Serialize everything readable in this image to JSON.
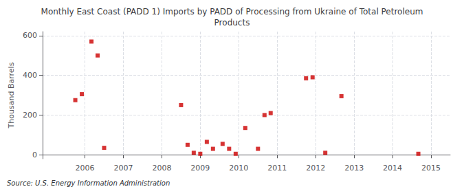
{
  "chart_data": {
    "type": "scatter",
    "title": "Monthly East Coast (PADD 1) Imports by PADD of Processing from Ukraine of Total Petroleum\nProducts",
    "ylabel": "Thousand Barrels",
    "source": "Source: U.S. Energy Information Administration",
    "x": [
      2005.75,
      2005.92,
      2006.17,
      2006.33,
      2006.5,
      2008.5,
      2008.67,
      2008.83,
      2009.0,
      2009.17,
      2009.33,
      2009.58,
      2009.75,
      2009.92,
      2010.17,
      2010.5,
      2010.67,
      2010.83,
      2011.75,
      2011.92,
      2012.25,
      2012.67,
      2014.67
    ],
    "values": [
      275,
      305,
      570,
      500,
      35,
      250,
      50,
      10,
      5,
      65,
      30,
      55,
      30,
      5,
      135,
      30,
      200,
      210,
      385,
      390,
      10,
      295,
      5
    ],
    "color": "#cc0000",
    "marker": "square",
    "xlim": [
      2004.9,
      2015.5
    ],
    "ylim": [
      -20,
      620
    ],
    "xticks": [
      2006,
      2007,
      2008,
      2009,
      2010,
      2011,
      2012,
      2013,
      2014,
      2015
    ],
    "yticks": [
      0,
      200,
      400,
      600
    ],
    "grid": true
  }
}
